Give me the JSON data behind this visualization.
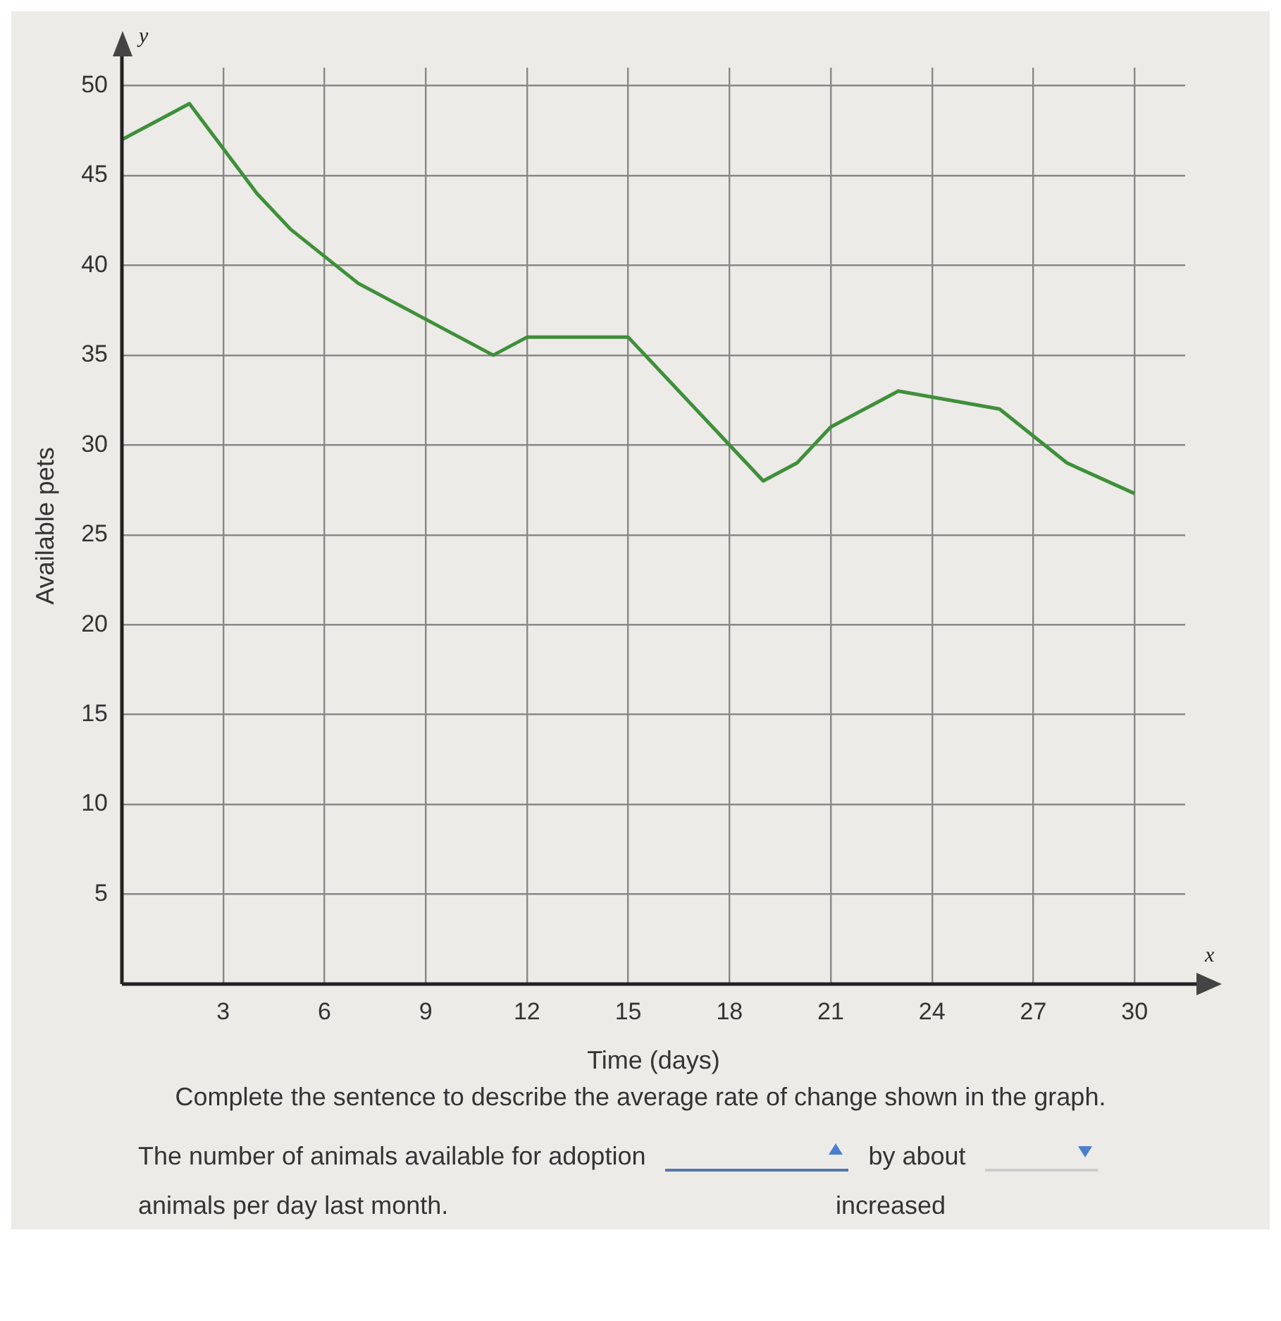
{
  "chart_data": {
    "type": "line",
    "xlabel": "Time (days)",
    "ylabel": "Available pets",
    "x": [
      0,
      2,
      4,
      5,
      7,
      11,
      12,
      15,
      19,
      20,
      21,
      23,
      26,
      28,
      30
    ],
    "series": [
      {
        "color": "#3f8f3a",
        "values": [
          47,
          49,
          44,
          42,
          39,
          35,
          36,
          36,
          28,
          29,
          31,
          33,
          32,
          29,
          27.3
        ]
      }
    ],
    "xlim": [
      0,
      31.5
    ],
    "xticks": [
      3,
      6,
      9,
      12,
      15,
      18,
      21,
      24,
      27,
      30
    ],
    "ylim": [
      0,
      51
    ],
    "yticks": [
      5,
      10,
      15,
      20,
      25,
      30,
      35,
      40,
      45,
      50
    ],
    "grid": true,
    "marker": "none",
    "line_style": "solid",
    "annotations": [
      "y",
      "x",
      "Complete the sentence to describe the average rate of change shown in the graph.",
      "The number of animals available for adoption",
      "increased",
      "by about",
      "animals per day last month."
    ]
  }
}
